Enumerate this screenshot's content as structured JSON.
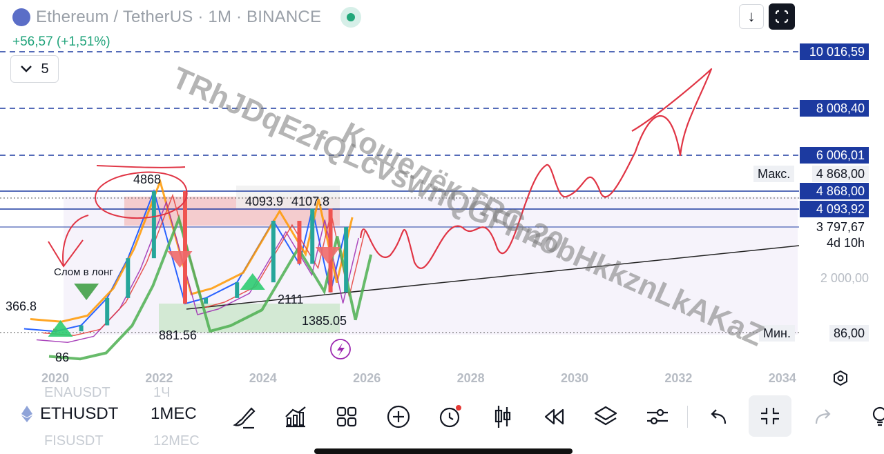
{
  "header": {
    "title": "Ethereum / TetherUS · 1M · BINANCE",
    "change": "+56,57 (+1,51%)",
    "indicator_count": "5"
  },
  "price_axis": {
    "levels": [
      {
        "price": 10016.59,
        "label": "10 016,59",
        "style": "tag",
        "dashed": true
      },
      {
        "price": 8008.4,
        "label": "8 008,40",
        "style": "tag",
        "dashed": true
      },
      {
        "price": 6006.01,
        "label": "6 006,01",
        "style": "tag",
        "dashed": true
      },
      {
        "price": 4868.0,
        "label": "4 868,00",
        "style": "tag",
        "dashed": false
      },
      {
        "price": 4093.92,
        "label": "4 093,92",
        "style": "tag",
        "dashed": false
      },
      {
        "price": 3797.67,
        "label": "3 797,67",
        "style": "plain",
        "dashed": false
      }
    ],
    "max_label": "Макс.",
    "max_value": "4 868,00",
    "min_label": "Мин.",
    "min_value": "86,00",
    "countdown": "4d 10h",
    "gray_tick": "2 000,00"
  },
  "chart_data": {
    "type": "line",
    "title": "Ethereum / TetherUS · 1M · BINANCE",
    "x_ticks": [
      "2020",
      "2022",
      "2024",
      "2026",
      "2028",
      "2030",
      "2032",
      "2034"
    ],
    "annotations": [
      "4868",
      "4093.9",
      "4107.8",
      "366.8",
      "881.56",
      "2111",
      "1385.05",
      "86",
      "Слом в лонг"
    ],
    "series": [
      {
        "values_approx": [
          [
            2019.4,
            220
          ],
          [
            2020.0,
            130
          ],
          [
            2020.5,
            340
          ],
          [
            2021.0,
            1300
          ],
          [
            2021.4,
            2700
          ],
          [
            2021.9,
            4868
          ],
          [
            2022.5,
            1100
          ],
          [
            2022.9,
            1300
          ],
          [
            2023.5,
            1850
          ],
          [
            2024.2,
            3900
          ],
          [
            2024.7,
            2500
          ],
          [
            2024.95,
            4107
          ],
          [
            2025.3,
            1500
          ],
          [
            2025.6,
            3797
          ]
        ]
      }
    ],
    "colors": {
      "support_zone": "#4caf50",
      "resistance_zone": "#e57373",
      "level_line": "#1c3aa0",
      "drawing": "#e03444"
    }
  },
  "watermark": {
    "line1": "TRhJDqE2fQLcvswnQGFhnobHkkznLkAKaZ",
    "line2": "Кошелёк TRC-20"
  },
  "bottom_bar": {
    "symbol": "ETHUSDT",
    "timeframe": "1МЕС",
    "ghost_above_symbol": "ENAUSDT",
    "ghost_above_tf": "1Ч",
    "ghost_below_symbol": "FISUSDT",
    "ghost_below_tf": "12МЕС"
  }
}
